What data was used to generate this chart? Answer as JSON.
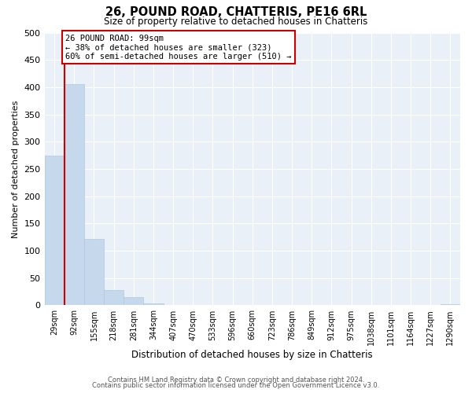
{
  "title": "26, POUND ROAD, CHATTERIS, PE16 6RL",
  "subtitle": "Size of property relative to detached houses in Chatteris",
  "xlabel": "Distribution of detached houses by size in Chatteris",
  "ylabel": "Number of detached properties",
  "bin_labels": [
    "29sqm",
    "92sqm",
    "155sqm",
    "218sqm",
    "281sqm",
    "344sqm",
    "407sqm",
    "470sqm",
    "533sqm",
    "596sqm",
    "660sqm",
    "723sqm",
    "786sqm",
    "849sqm",
    "912sqm",
    "975sqm",
    "1038sqm",
    "1101sqm",
    "1164sqm",
    "1227sqm",
    "1290sqm"
  ],
  "bar_heights": [
    275,
    405,
    122,
    28,
    15,
    3,
    0,
    0,
    0,
    0,
    0,
    0,
    0,
    0,
    0,
    0,
    0,
    0,
    0,
    0,
    2
  ],
  "bar_color": "#c5d8ec",
  "bar_edge_color": "#aec8e0",
  "vline_color": "#cc0000",
  "vline_x_index": 1,
  "ylim": [
    0,
    500
  ],
  "yticks": [
    0,
    50,
    100,
    150,
    200,
    250,
    300,
    350,
    400,
    450,
    500
  ],
  "annotation_title": "26 POUND ROAD: 99sqm",
  "annotation_line1": "← 38% of detached houses are smaller (323)",
  "annotation_line2": "60% of semi-detached houses are larger (510) →",
  "annotation_box_color": "#ffffff",
  "annotation_box_edge_color": "#cc0000",
  "footer_line1": "Contains HM Land Registry data © Crown copyright and database right 2024.",
  "footer_line2": "Contains public sector information licensed under the Open Government Licence v3.0.",
  "background_color": "#ffffff",
  "plot_bg_color": "#eaf0f7",
  "grid_color": "#ffffff"
}
